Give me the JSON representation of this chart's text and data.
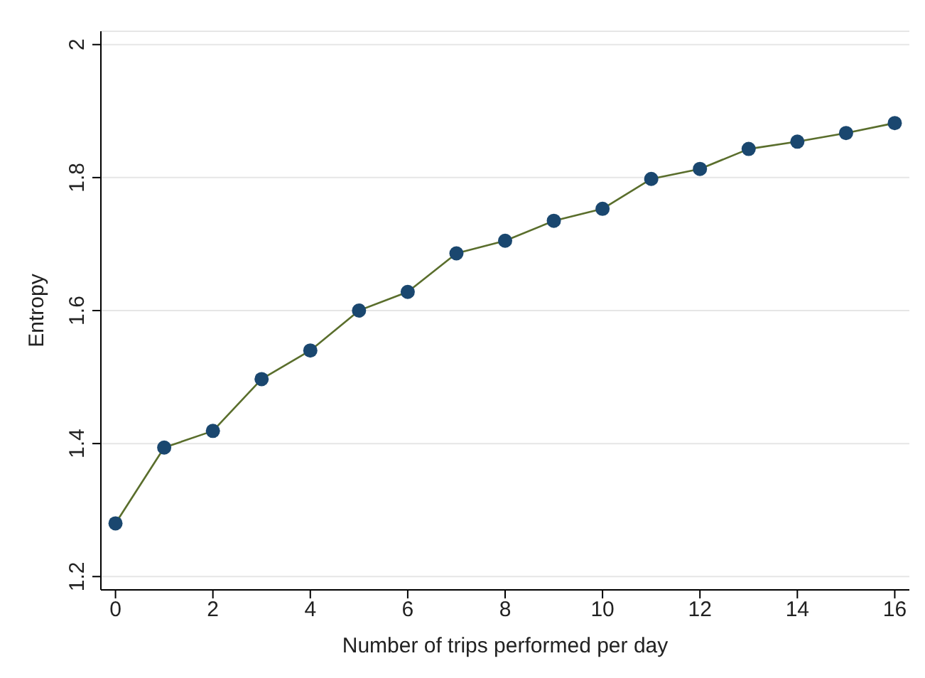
{
  "chart_data": {
    "type": "line",
    "xlabel": "Number of trips performed per day",
    "ylabel": "Entropy",
    "x": [
      0,
      1,
      2,
      3,
      4,
      5,
      6,
      7,
      8,
      9,
      10,
      11,
      12,
      13,
      14,
      15,
      16
    ],
    "series": [
      {
        "color": "#5a6e2c",
        "values": [
          1.28,
          1.394,
          1.419,
          1.497,
          1.54,
          1.6,
          1.628,
          1.686,
          1.705,
          1.735,
          1.753,
          1.798,
          1.813,
          1.843,
          1.854,
          1.867,
          1.882
        ]
      }
    ],
    "xlim": [
      -0.3,
      16.3
    ],
    "xticks": [
      0,
      2,
      4,
      6,
      8,
      10,
      12,
      14,
      16
    ],
    "ylim": [
      1.18,
      2.02
    ],
    "yticks": [
      1.2,
      1.4,
      1.6,
      1.8,
      2
    ],
    "grid": "y",
    "marker": "circle",
    "line_style": "solid",
    "legend": false
  }
}
